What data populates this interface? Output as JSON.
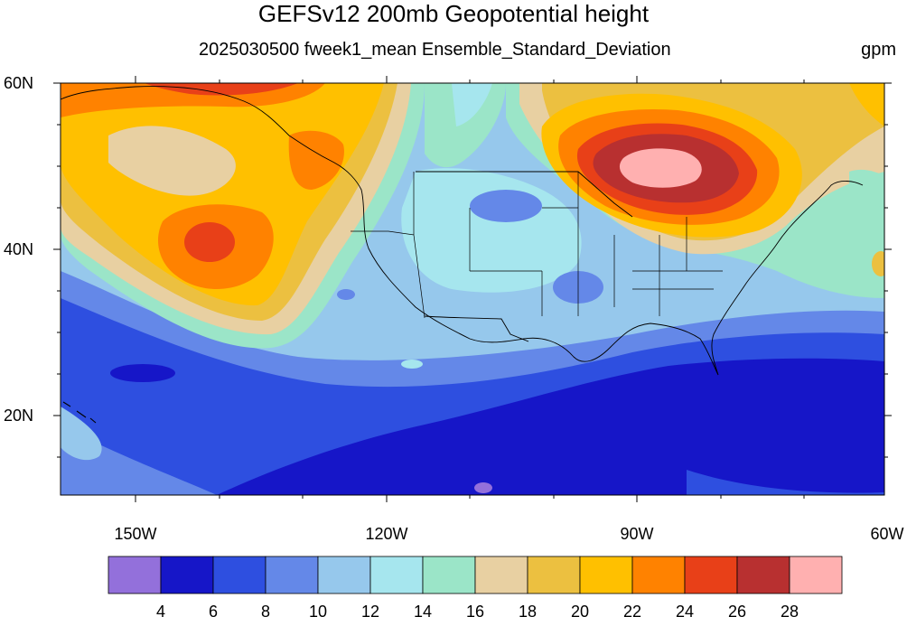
{
  "title": "GEFSv12 200mb Geopotential height",
  "subtitle": "2025030500 fweek1_mean Ensemble_Standard_Deviation",
  "units": "gpm",
  "map": {
    "lon_range": [
      -160,
      -60
    ],
    "lat_range": [
      10,
      60
    ],
    "lat_labels": [
      {
        "lat": 60,
        "text": "60N"
      },
      {
        "lat": 40,
        "text": "40N"
      },
      {
        "lat": 20,
        "text": "20N"
      }
    ],
    "lon_labels": [
      {
        "lon": -150,
        "text": "150W"
      },
      {
        "lon": -120,
        "text": "120W"
      },
      {
        "lon": -90,
        "text": "90W"
      },
      {
        "lon": -60,
        "text": "60W"
      }
    ]
  },
  "colorbar": {
    "labels": [
      "4",
      "6",
      "8",
      "10",
      "12",
      "14",
      "16",
      "18",
      "20",
      "22",
      "24",
      "26",
      "28"
    ],
    "colors": [
      "#9370db",
      "#1616c8",
      "#2e4fe0",
      "#6488e8",
      "#96c8ec",
      "#a6e6ee",
      "#9be5c8",
      "#e8d0a2",
      "#ecc040",
      "#ffc000",
      "#ff8200",
      "#e84018",
      "#b83030",
      "#ffb0b0"
    ]
  }
}
